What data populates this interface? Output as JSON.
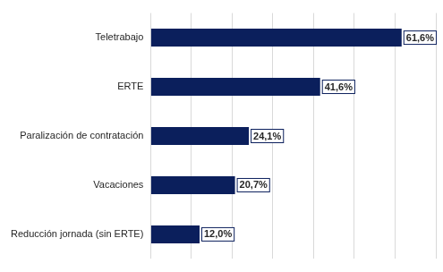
{
  "chart_data": {
    "type": "bar",
    "orientation": "horizontal",
    "categories": [
      "Teletrabajo",
      "ERTE",
      "Paralización de contratación",
      "Vacaciones",
      "Reducción jornada (sin ERTE)"
    ],
    "values": [
      61.6,
      41.6,
      24.1,
      20.7,
      12.0
    ],
    "value_labels": [
      "61,6%",
      "41,6%",
      "24,1%",
      "20,7%",
      "12,0%"
    ],
    "color": "#0b1f5c",
    "xlim": [
      0,
      70
    ],
    "xticks": [
      0,
      10,
      20,
      30,
      40,
      50,
      60,
      70
    ],
    "grid": true,
    "data_labels": true,
    "tick_labels": "y"
  }
}
